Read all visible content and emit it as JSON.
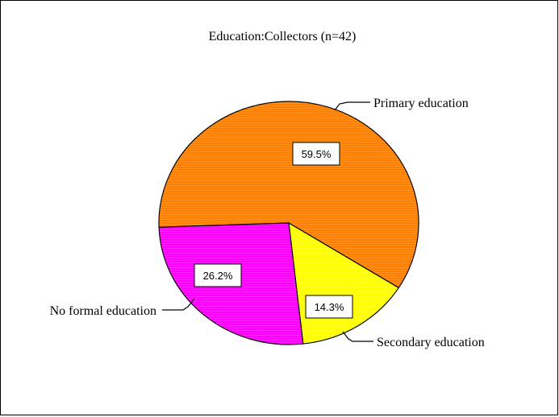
{
  "chart_data": {
    "type": "pie",
    "title": "Education:Collectors (n=42)",
    "slices": [
      {
        "label": "Primary education",
        "value": 59.5,
        "value_label": "59.5%",
        "color": "#FF8000"
      },
      {
        "label": "Secondary education",
        "value": 14.3,
        "value_label": "14.3%",
        "color": "#FFFF00"
      },
      {
        "label": "No formal education",
        "value": 26.2,
        "value_label": "26.2%",
        "color": "#FF00FF"
      }
    ],
    "legend": "none",
    "labels_outside": true
  }
}
